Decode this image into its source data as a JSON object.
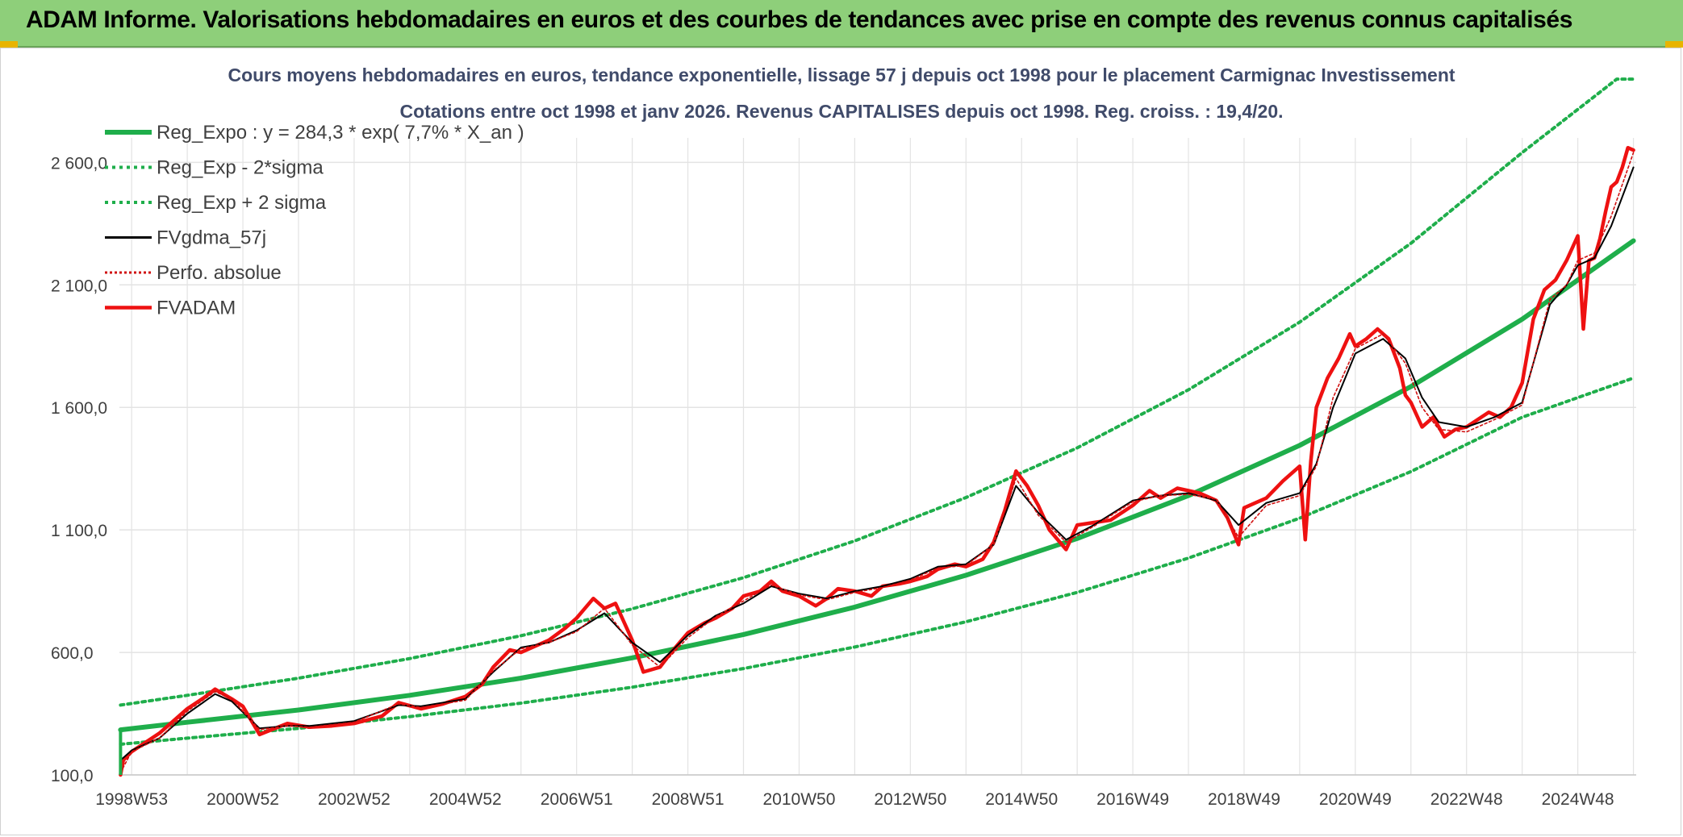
{
  "header": {
    "title": "ADAM Informe. Valorisations hebdomadaires en euros et des courbes de tendances avec prise en compte des revenus connus capitalisés"
  },
  "colors": {
    "banner": "#8ecf7a",
    "trend": "#1fae4b",
    "band": "#1fae4b",
    "smooth": "#000000",
    "perf": "#d01010",
    "price": "#ee1111",
    "grid": "#e3e3e3"
  },
  "chart_data": {
    "type": "line",
    "title": "Cours moyens hebdomadaires en euros, tendance exponentielle, lissage 57 j depuis oct 1998 pour le placement Carmignac Investissement",
    "subtitle": "Cotations entre oct 1998 et janv 2026. Revenus CAPITALISES depuis oct 1998. Reg. croiss. : 19,4/20.",
    "xlabel": "",
    "ylabel": "",
    "x_range": [
      1998.78,
      2026.05
    ],
    "ylim": [
      100,
      2700
    ],
    "y_ticks": [
      100,
      600,
      1100,
      1600,
      2100,
      2600
    ],
    "y_tick_labels": [
      "100,0",
      "600,0",
      "1 100,0",
      "1 600,0",
      "2 100,0",
      "2 600,0"
    ],
    "x_ticks": [
      1999.0,
      2001.0,
      2003.0,
      2005.0,
      2007.0,
      2009.0,
      2011.0,
      2013.0,
      2015.0,
      2017.0,
      2019.0,
      2021.0,
      2023.0,
      2025.0
    ],
    "x_tick_labels": [
      "1998W53",
      "2000W52",
      "2002W52",
      "2004W52",
      "2006W51",
      "2008W51",
      "2010W50",
      "2012W50",
      "2014W50",
      "2016W49",
      "2018W49",
      "2020W49",
      "2022W48",
      "2024W48"
    ],
    "grid": true,
    "legend_position": "top-left",
    "legend": [
      "Reg_Expo : y = 284,3 * exp( 7,7% *  X_an )",
      "Reg_Exp - 2*sigma",
      "Reg_Exp + 2 sigma",
      "FVgdma_57j",
      "Perfo. absolue",
      "FVADAM"
    ],
    "series": [
      {
        "name": "Reg_Expo : y = 284,3 * exp( 7,7% *  X_an )",
        "style": "solid-thick",
        "x": [
          1998.8,
          2000.0,
          2002.0,
          2004.0,
          2006.0,
          2008.0,
          2010.0,
          2012.0,
          2014.0,
          2016.0,
          2018.0,
          2020.0,
          2022.0,
          2024.0,
          2026.0
        ],
        "y": [
          284,
          315,
          365,
          425,
          495,
          578,
          673,
          785,
          915,
          1065,
          1240,
          1445,
          1685,
          1960,
          2280
        ]
      },
      {
        "name": "Reg_Exp - 2*sigma",
        "style": "dotted",
        "x": [
          1998.8,
          2000.0,
          2002.0,
          2004.0,
          2006.0,
          2008.0,
          2010.0,
          2012.0,
          2014.0,
          2016.0,
          2018.0,
          2020.0,
          2022.0,
          2024.0,
          2026.0
        ],
        "y": [
          225,
          250,
          290,
          338,
          393,
          458,
          534,
          622,
          725,
          845,
          985,
          1148,
          1338,
          1560,
          1720
        ]
      },
      {
        "name": "Reg_Exp + 2 sigma",
        "style": "dotted",
        "x": [
          1998.8,
          2000.0,
          2002.0,
          2004.0,
          2006.0,
          2008.0,
          2010.0,
          2012.0,
          2014.0,
          2016.0,
          2018.0,
          2020.0,
          2022.0,
          2024.0,
          2025.7,
          2026.0
        ],
        "y": [
          385,
          425,
          495,
          575,
          668,
          778,
          905,
          1055,
          1232,
          1435,
          1672,
          1948,
          2270,
          2640,
          2940,
          2940
        ]
      },
      {
        "name": "FVgdma_57j",
        "style": "solid",
        "x": [
          1998.8,
          1999.0,
          1999.5,
          2000.0,
          2000.5,
          2000.8,
          2001.3,
          2001.8,
          2002.2,
          2003.0,
          2003.8,
          2004.2,
          2005.0,
          2005.5,
          2006.0,
          2006.5,
          2007.0,
          2007.5,
          2008.0,
          2008.5,
          2009.0,
          2009.5,
          2010.0,
          2010.5,
          2011.0,
          2011.5,
          2012.0,
          2012.5,
          2013.0,
          2013.5,
          2014.0,
          2014.5,
          2014.9,
          2015.3,
          2015.8,
          2016.3,
          2017.0,
          2017.5,
          2018.0,
          2018.5,
          2018.9,
          2019.4,
          2020.0,
          2020.3,
          2020.6,
          2021.0,
          2021.5,
          2021.9,
          2022.2,
          2022.5,
          2023.0,
          2023.5,
          2024.0,
          2024.5,
          2024.8,
          2025.0,
          2025.3,
          2025.6,
          2026.0
        ],
        "y": [
          160,
          200,
          250,
          350,
          430,
          400,
          290,
          300,
          300,
          320,
          385,
          380,
          410,
          520,
          620,
          640,
          690,
          760,
          640,
          560,
          670,
          750,
          800,
          870,
          840,
          820,
          850,
          870,
          900,
          950,
          960,
          1040,
          1280,
          1170,
          1060,
          1120,
          1220,
          1240,
          1250,
          1220,
          1120,
          1210,
          1250,
          1370,
          1600,
          1820,
          1880,
          1800,
          1640,
          1540,
          1520,
          1560,
          1620,
          2020,
          2100,
          2180,
          2210,
          2340,
          2580
        ]
      },
      {
        "name": "Perfo. absolue",
        "style": "dotted-thin",
        "x": [
          1998.8,
          1999.0,
          1999.5,
          2000.0,
          2000.5,
          2000.8,
          2001.3,
          2001.8,
          2002.2,
          2003.0,
          2003.8,
          2004.2,
          2005.0,
          2005.5,
          2006.0,
          2006.5,
          2007.0,
          2007.5,
          2008.0,
          2008.5,
          2009.0,
          2009.5,
          2010.0,
          2010.5,
          2011.0,
          2011.5,
          2012.0,
          2012.5,
          2013.0,
          2013.5,
          2014.0,
          2014.5,
          2014.9,
          2015.3,
          2015.8,
          2016.3,
          2017.0,
          2017.5,
          2018.0,
          2018.5,
          2018.9,
          2019.4,
          2020.0,
          2020.3,
          2020.6,
          2021.0,
          2021.5,
          2021.9,
          2022.2,
          2022.5,
          2023.0,
          2023.5,
          2024.0,
          2024.5,
          2024.8,
          2025.0,
          2025.3,
          2025.6,
          2026.0
        ],
        "y": [
          110,
          195,
          250,
          360,
          440,
          410,
          285,
          300,
          295,
          315,
          390,
          375,
          405,
          525,
          615,
          640,
          685,
          780,
          630,
          540,
          660,
          745,
          810,
          875,
          835,
          815,
          845,
          865,
          895,
          945,
          955,
          1040,
          1310,
          1160,
          1050,
          1115,
          1215,
          1240,
          1245,
          1225,
          1070,
          1200,
          1240,
          1360,
          1640,
          1840,
          1900,
          1780,
          1600,
          1510,
          1500,
          1550,
          1610,
          2040,
          2100,
          2200,
          2230,
          2380,
          2640
        ]
      },
      {
        "name": "FVADAM",
        "style": "solid-red",
        "x": [
          1998.8,
          1998.85,
          1999.0,
          1999.5,
          2000.0,
          2000.3,
          2000.5,
          2000.8,
          2001.0,
          2001.3,
          2001.8,
          2002.2,
          2002.6,
          2003.0,
          2003.5,
          2003.8,
          2004.2,
          2004.6,
          2005.0,
          2005.3,
          2005.5,
          2005.8,
          2006.0,
          2006.3,
          2006.5,
          2006.8,
          2007.0,
          2007.3,
          2007.5,
          2007.7,
          2008.0,
          2008.2,
          2008.5,
          2008.7,
          2009.0,
          2009.3,
          2009.5,
          2009.8,
          2010.0,
          2010.3,
          2010.5,
          2010.7,
          2011.0,
          2011.3,
          2011.5,
          2011.7,
          2012.0,
          2012.3,
          2012.5,
          2012.8,
          2013.0,
          2013.3,
          2013.5,
          2013.8,
          2014.0,
          2014.3,
          2014.5,
          2014.7,
          2014.9,
          2015.1,
          2015.3,
          2015.5,
          2015.8,
          2016.0,
          2016.3,
          2016.6,
          2017.0,
          2017.3,
          2017.5,
          2017.8,
          2018.0,
          2018.2,
          2018.5,
          2018.7,
          2018.9,
          2019.0,
          2019.2,
          2019.4,
          2019.7,
          2020.0,
          2020.1,
          2020.2,
          2020.3,
          2020.5,
          2020.7,
          2020.9,
          2021.0,
          2021.2,
          2021.4,
          2021.6,
          2021.8,
          2021.9,
          2022.0,
          2022.2,
          2022.4,
          2022.6,
          2022.8,
          2023.0,
          2023.2,
          2023.4,
          2023.6,
          2023.8,
          2024.0,
          2024.2,
          2024.4,
          2024.6,
          2024.8,
          2025.0,
          2025.1,
          2025.2,
          2025.3,
          2025.4,
          2025.5,
          2025.6,
          2025.7,
          2025.8,
          2025.9,
          2026.0
        ],
        "y": [
          100,
          160,
          195,
          270,
          370,
          415,
          450,
          410,
          380,
          265,
          310,
          295,
          300,
          310,
          340,
          395,
          370,
          390,
          420,
          470,
          540,
          610,
          600,
          630,
          650,
          700,
          740,
          820,
          780,
          800,
          650,
          520,
          540,
          600,
          680,
          720,
          740,
          780,
          830,
          850,
          890,
          850,
          830,
          790,
          820,
          860,
          850,
          830,
          870,
          880,
          890,
          910,
          940,
          960,
          950,
          980,
          1050,
          1180,
          1340,
          1280,
          1200,
          1100,
          1020,
          1120,
          1130,
          1140,
          1200,
          1260,
          1230,
          1270,
          1260,
          1250,
          1220,
          1150,
          1040,
          1190,
          1210,
          1230,
          1300,
          1360,
          1060,
          1380,
          1600,
          1720,
          1800,
          1900,
          1850,
          1880,
          1920,
          1880,
          1760,
          1650,
          1620,
          1520,
          1560,
          1480,
          1510,
          1520,
          1550,
          1580,
          1560,
          1600,
          1700,
          1960,
          2080,
          2120,
          2200,
          2300,
          1920,
          2200,
          2210,
          2290,
          2400,
          2500,
          2520,
          2580,
          2660,
          2650
        ]
      }
    ]
  }
}
